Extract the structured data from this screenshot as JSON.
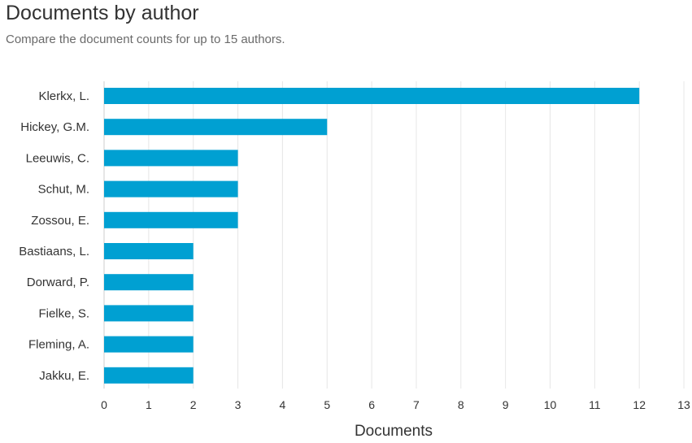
{
  "header": {
    "title": "Documents by author",
    "subtitle": "Compare the document counts for up to 15 authors."
  },
  "colors": {
    "bar": "#00a0d2",
    "grid": "#e6e6e6",
    "axis": "#cccccc"
  },
  "chart_data": {
    "type": "bar",
    "orientation": "horizontal",
    "categories": [
      "Klerkx, L.",
      "Hickey, G.M.",
      "Leeuwis, C.",
      "Schut, M.",
      "Zossou, E.",
      "Bastiaans, L.",
      "Dorward, P.",
      "Fielke, S.",
      "Fleming, A.",
      "Jakku, E."
    ],
    "values": [
      12,
      5,
      3,
      3,
      3,
      2,
      2,
      2,
      2,
      2
    ],
    "xlabel": "Documents",
    "ylabel": "",
    "xlim": [
      0,
      13
    ],
    "xticks": [
      0,
      1,
      2,
      3,
      4,
      5,
      6,
      7,
      8,
      9,
      10,
      11,
      12,
      13
    ],
    "grid": true,
    "legend": "none"
  }
}
